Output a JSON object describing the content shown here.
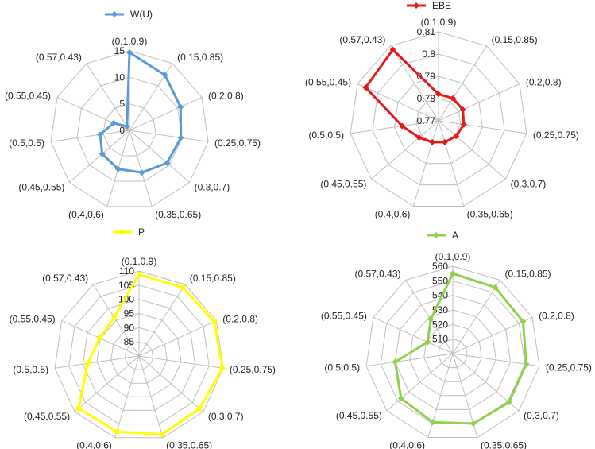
{
  "chart_data": [
    {
      "type": "radar",
      "categories": [
        "(0.1,0.9)",
        "(0.15,0.85)",
        "(0.2,0.8)",
        "(0.25,0.75)",
        "(0.3,0.7)",
        "(0.35,0.65)",
        "(0.4,0.6)",
        "(0.45,0.55)",
        "(0.5,0.5)",
        "(0.55,0.45)",
        "(0.57,0.43)"
      ],
      "series": [
        {
          "name": "W(U)",
          "values": [
            14.7,
            12.4,
            10.6,
            9.8,
            9.4,
            8.3,
            7.6,
            6.8,
            5.6,
            3.3,
            0.9
          ]
        }
      ],
      "rlim": [
        0,
        15
      ],
      "ticks": [
        "0",
        "5",
        "10",
        "15"
      ],
      "legend": "top",
      "color": "#5b9bd5",
      "marker": "diamond"
    },
    {
      "type": "radar",
      "categories": [
        "(0.1,0.9)",
        "(0.15,0.85)",
        "(0.2,0.8)",
        "(0.25,0.75)",
        "(0.3,0.7)",
        "(0.35,0.65)",
        "(0.4,0.6)",
        "(0.45,0.55)",
        "(0.5,0.5)",
        "(0.55,0.45)",
        "(0.57,0.43)"
      ],
      "series": [
        {
          "name": "EBE",
          "values": [
            0.782,
            0.782,
            0.782,
            0.7815,
            0.7805,
            0.78,
            0.78,
            0.7815,
            0.7865,
            0.806,
            0.808
          ]
        }
      ],
      "rlim": [
        0.77,
        0.81
      ],
      "ticks": [
        "0.77",
        "0.78",
        "0.79",
        "0.8",
        "0.81"
      ],
      "legend": "top",
      "color": "#e31a1c",
      "marker": "diamond"
    },
    {
      "type": "radar",
      "categories": [
        "(0.1,0.9)",
        "(0.15,0.85)",
        "(0.2,0.8)",
        "(0.25,0.75)",
        "(0.3,0.7)",
        "(0.35,0.65)",
        "(0.4,0.6)",
        "(0.45,0.55)",
        "(0.5,0.5)",
        "(0.55,0.45)",
        "(0.57,0.43)"
      ],
      "series": [
        {
          "name": "P",
          "values": [
            108.8,
            108.7,
            109.2,
            109.7,
            108.3,
            108.8,
            107.8,
            108.2,
            98.3,
            95.3,
            96.2
          ]
        }
      ],
      "rlim": [
        80,
        110
      ],
      "ticks": [
        "85",
        "90",
        "95",
        "100",
        "105",
        "110"
      ],
      "legend": "top",
      "color": "#ffff00",
      "marker": "square"
    },
    {
      "type": "radar",
      "categories": [
        "(0.1,0.9)",
        "(0.15,0.85)",
        "(0.2,0.8)",
        "(0.25,0.75)",
        "(0.3,0.7)",
        "(0.35,0.65)",
        "(0.4,0.6)",
        "(0.45,0.55)",
        "(0.5,0.5)",
        "(0.55,0.45)",
        "(0.57,0.43)"
      ],
      "series": [
        {
          "name": "A",
          "values": [
            555,
            554,
            553,
            551,
            551,
            550,
            549,
            547,
            540,
            519,
            528
          ]
        }
      ],
      "rlim": [
        500,
        560
      ],
      "ticks": [
        "510",
        "520",
        "530",
        "540",
        "550",
        "560"
      ],
      "legend": "top",
      "color": "#92d050",
      "marker": "diamond"
    }
  ]
}
